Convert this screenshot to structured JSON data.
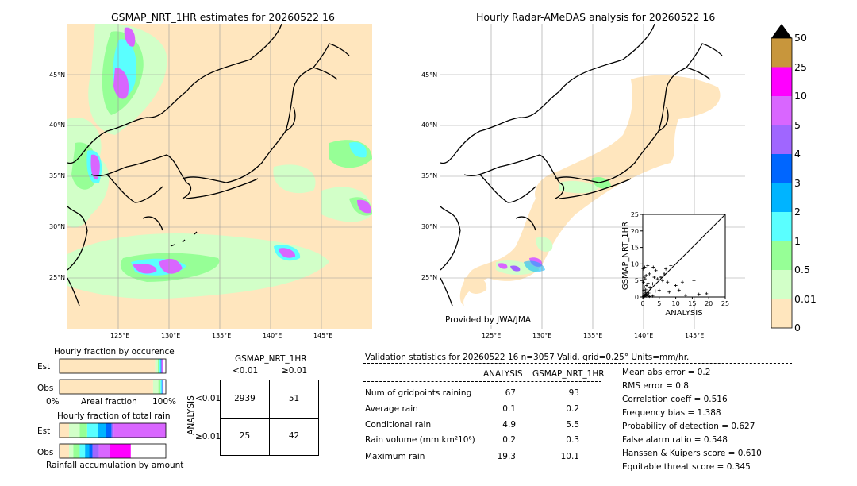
{
  "left_map": {
    "title": "GSMAP_NRT_1HR estimates for 20260522 16",
    "lat_ticks": [
      "45°N",
      "40°N",
      "35°N",
      "30°N",
      "25°N"
    ],
    "lon_ticks": [
      "125°E",
      "130°E",
      "135°E",
      "140°E",
      "145°E"
    ]
  },
  "right_map": {
    "title": "Hourly Radar-AMeDAS analysis for 20260522 16",
    "lat_ticks": [
      "45°N",
      "40°N",
      "35°N",
      "30°N",
      "25°N"
    ],
    "lon_ticks": [
      "125°E",
      "130°E",
      "135°E",
      "140°E",
      "145°E"
    ],
    "credit": "Provided by JWA/JMA"
  },
  "colorbar": {
    "labels": [
      "50",
      "25",
      "10",
      "5",
      "4",
      "3",
      "2",
      "1",
      "0.5",
      "0.01",
      "0"
    ],
    "colors": [
      "#c8963c",
      "#ff00ff",
      "#d966ff",
      "#a066ff",
      "#0066ff",
      "#00b4ff",
      "#5affff",
      "#96ff96",
      "#d2ffc8",
      "#ffe6be"
    ],
    "extend_color": "#000000"
  },
  "chart_data": [
    {
      "type": "scatter",
      "title": "",
      "xlabel": "ANALYSIS",
      "ylabel": "GSMAP_NRT_1HR",
      "xlim": [
        0,
        25
      ],
      "ylim": [
        0,
        25
      ],
      "x_ticks": [
        "0",
        "5",
        "10",
        "15",
        "20",
        "25"
      ],
      "y_ticks": [
        "0",
        "5",
        "10",
        "15",
        "20",
        "25"
      ],
      "points": [
        [
          0.2,
          0.1
        ],
        [
          0.3,
          0.4
        ],
        [
          0.5,
          0.2
        ],
        [
          0.4,
          1.0
        ],
        [
          0.6,
          0.5
        ],
        [
          0.8,
          1.4
        ],
        [
          1.0,
          0.3
        ],
        [
          1.2,
          0.8
        ],
        [
          0.3,
          2.0
        ],
        [
          0.5,
          3.0
        ],
        [
          0.2,
          4.5
        ],
        [
          0.4,
          6.0
        ],
        [
          0.7,
          5.5
        ],
        [
          1.5,
          0.5
        ],
        [
          2.0,
          0.2
        ],
        [
          1.8,
          1.2
        ],
        [
          2.5,
          0.6
        ],
        [
          3.0,
          0.3
        ],
        [
          0.1,
          8.5
        ],
        [
          0.6,
          9.0
        ],
        [
          1.5,
          9.5
        ],
        [
          2.5,
          10.0
        ],
        [
          3.2,
          9.0
        ],
        [
          4.0,
          8.0
        ],
        [
          2.0,
          7.0
        ],
        [
          1.0,
          6.5
        ],
        [
          3.5,
          6.0
        ],
        [
          4.5,
          5.5
        ],
        [
          5.5,
          6.0
        ],
        [
          6.5,
          7.0
        ],
        [
          7.0,
          8.5
        ],
        [
          8.5,
          9.5
        ],
        [
          9.5,
          10.0
        ],
        [
          6.0,
          5.0
        ],
        [
          7.5,
          4.5
        ],
        [
          5.0,
          2.0
        ],
        [
          8.0,
          1.5
        ],
        [
          10.0,
          3.5
        ],
        [
          11.0,
          2.0
        ],
        [
          12.0,
          4.5
        ],
        [
          15.5,
          5.0
        ],
        [
          17.0,
          0.8
        ],
        [
          19.3,
          1.0
        ],
        [
          13.0,
          0.5
        ],
        [
          3.0,
          4.0
        ],
        [
          1.2,
          3.5
        ],
        [
          2.2,
          2.8
        ],
        [
          0.9,
          2.2
        ],
        [
          1.6,
          4.2
        ],
        [
          3.8,
          1.8
        ]
      ]
    },
    {
      "type": "bar",
      "title": "Hourly fraction by occurence",
      "xlabel": "Areal fraction",
      "x_ticks": [
        "0%",
        "100%"
      ],
      "categories": [
        "Est",
        "Obs"
      ],
      "series": [
        {
          "color": "#ffe6be",
          "values": [
            0.9,
            0.88
          ]
        },
        {
          "color": "#d2ffc8",
          "values": [
            0.025,
            0.05
          ]
        },
        {
          "color": "#96ff96",
          "values": [
            0.015,
            0.02
          ]
        },
        {
          "color": "#5affff",
          "values": [
            0.01,
            0.01
          ]
        },
        {
          "color": "#00b4ff",
          "values": [
            0.005,
            0.005
          ]
        },
        {
          "color": "#0066ff",
          "values": [
            0.003,
            0.003
          ]
        },
        {
          "color": "#a066ff",
          "values": [
            0.004,
            0.004
          ]
        },
        {
          "color": "#d966ff",
          "values": [
            0.01,
            0.004
          ]
        },
        {
          "color": "#ff00ff",
          "values": [
            0.0,
            0.002
          ]
        },
        {
          "color": "#c8963c",
          "values": [
            0.0,
            0.0
          ]
        }
      ]
    },
    {
      "type": "bar",
      "title": "Hourly fraction of total rain",
      "xlabel": "Rainfall accumulation by amount",
      "categories": [
        "Est",
        "Obs"
      ],
      "series": [
        {
          "color": "#ffe6be",
          "values": [
            0.09,
            0.09
          ]
        },
        {
          "color": "#d2ffc8",
          "values": [
            0.1,
            0.04
          ]
        },
        {
          "color": "#96ff96",
          "values": [
            0.07,
            0.06
          ]
        },
        {
          "color": "#5affff",
          "values": [
            0.1,
            0.05
          ]
        },
        {
          "color": "#00b4ff",
          "values": [
            0.08,
            0.04
          ]
        },
        {
          "color": "#0066ff",
          "values": [
            0.05,
            0.03
          ]
        },
        {
          "color": "#a066ff",
          "values": [
            0.02,
            0.06
          ]
        },
        {
          "color": "#d966ff",
          "values": [
            0.49,
            0.1
          ]
        },
        {
          "color": "#ff00ff",
          "values": [
            0.0,
            0.2
          ]
        },
        {
          "color": "#c8963c",
          "values": [
            0.0,
            0.0
          ]
        }
      ]
    },
    {
      "type": "table",
      "title": "GSMAP_NRT_1HR",
      "col_headers": [
        "<0.01",
        "≥0.01"
      ],
      "row_axis_label": "ANALYSIS",
      "row_headers": [
        "<0.01",
        "≥0.01"
      ],
      "cells": [
        [
          "2939",
          "51"
        ],
        [
          "25",
          "42"
        ]
      ]
    }
  ],
  "stats": {
    "header": "Validation statistics for 20260522 16  n=3057 Valid. grid=0.25° Units=mm/hr.",
    "col_analysis": "ANALYSIS",
    "col_gsmap": "GSMAP_NRT_1HR",
    "rows": [
      {
        "label": "Num of gridpoints raining",
        "analysis": "67",
        "gsmap": "93"
      },
      {
        "label": "Average rain",
        "analysis": "0.1",
        "gsmap": "0.2"
      },
      {
        "label": "Conditional rain",
        "analysis": "4.9",
        "gsmap": "5.5"
      },
      {
        "label": "Rain volume (mm km²10⁶)",
        "analysis": "0.2",
        "gsmap": "0.3"
      },
      {
        "label": "Maximum rain",
        "analysis": "19.3",
        "gsmap": "10.1"
      }
    ],
    "scores": [
      "Mean abs error =    0.2",
      "RMS error =    0.8",
      "Correlation coeff =  0.516",
      "Frequency bias =  1.388",
      "Probability of detection =  0.627",
      "False alarm ratio =  0.548",
      "Hanssen & Kuipers score =  0.610",
      "Equitable threat score =  0.345"
    ]
  }
}
